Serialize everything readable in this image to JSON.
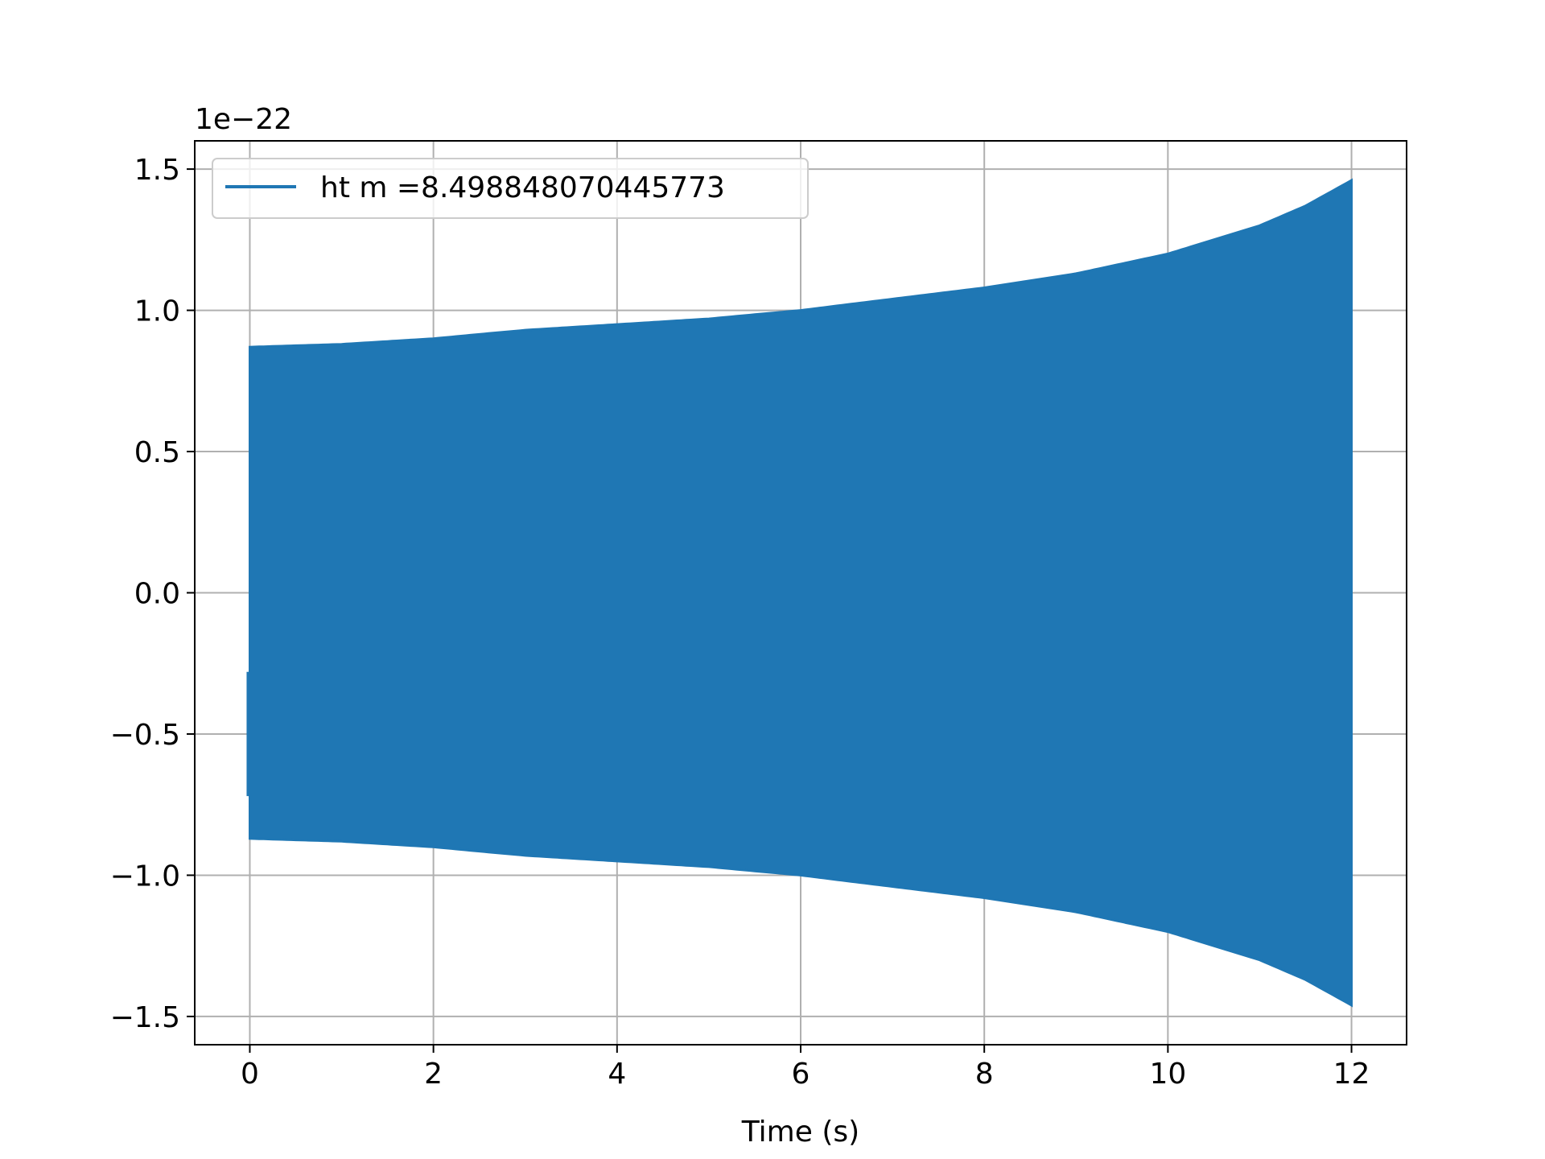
{
  "chart_data": {
    "type": "line",
    "xlabel": "Time (s)",
    "ylabel": "",
    "offset_label": "1e−22",
    "xlim": [
      -0.6,
      12.6
    ],
    "ylim": [
      -1.6,
      1.6
    ],
    "xticks": [
      0,
      2,
      4,
      6,
      8,
      10,
      12
    ],
    "xtick_labels": [
      "0",
      "2",
      "4",
      "6",
      "8",
      "10",
      "12"
    ],
    "yticks": [
      -1.5,
      -1.0,
      -0.5,
      0.0,
      0.5,
      1.0,
      1.5
    ],
    "ytick_labels": [
      "−1.5",
      "−1.0",
      "−0.5",
      "0.0",
      "0.5",
      "1.0",
      "1.5"
    ],
    "grid": true,
    "legend_position": "top-left",
    "series": [
      {
        "name": "ht m =8.498848070445773",
        "color": "#1f77b4",
        "description_kind": "chirp waveform envelope",
        "x": [
          0,
          1,
          2,
          3,
          4,
          5,
          6,
          7,
          8,
          9,
          10,
          10.5,
          11,
          11.5,
          12
        ],
        "envelope_upper": [
          0.87,
          0.88,
          0.9,
          0.93,
          0.95,
          0.97,
          1.0,
          1.04,
          1.08,
          1.13,
          1.2,
          1.25,
          1.3,
          1.37,
          1.46
        ],
        "envelope_lower": [
          -0.87,
          -0.88,
          -0.9,
          -0.93,
          -0.95,
          -0.97,
          -1.0,
          -1.04,
          -1.08,
          -1.13,
          -1.2,
          -1.25,
          -1.3,
          -1.37,
          -1.46
        ]
      }
    ]
  }
}
